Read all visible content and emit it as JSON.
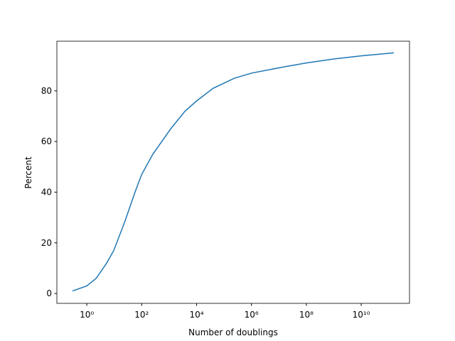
{
  "chart_data": {
    "type": "line",
    "xlabel": "Number of doublings",
    "ylabel": "Percent",
    "xscale": "log",
    "x": [
      0.3,
      1,
      2.2,
      5.3,
      9.6,
      23.6,
      57,
      100,
      255,
      1140,
      3800,
      10000,
      40000,
      240000,
      1000000,
      16000000,
      100000000,
      1000000000,
      10000000000,
      155000000000
    ],
    "series": [
      {
        "color": "#1f77b4",
        "values": [
          1,
          3,
          6,
          12,
          17,
          28,
          40,
          47,
          55,
          65,
          72,
          76,
          81,
          85,
          87,
          89.5,
          91,
          92.6,
          93.8,
          95
        ]
      }
    ],
    "xlim": [
      0.081,
      575000000000
    ],
    "xticks": [
      {
        "value": 1,
        "label": "10⁰"
      },
      {
        "value": 100,
        "label": "10²"
      },
      {
        "value": 10000,
        "label": "10⁴"
      },
      {
        "value": 1000000,
        "label": "10⁶"
      },
      {
        "value": 100000000,
        "label": "10⁸"
      },
      {
        "value": 10000000000,
        "label": "10¹⁰"
      }
    ],
    "ylim": [
      -3.9,
      99.6
    ],
    "yticks": [
      0,
      20,
      40,
      60,
      80
    ]
  }
}
